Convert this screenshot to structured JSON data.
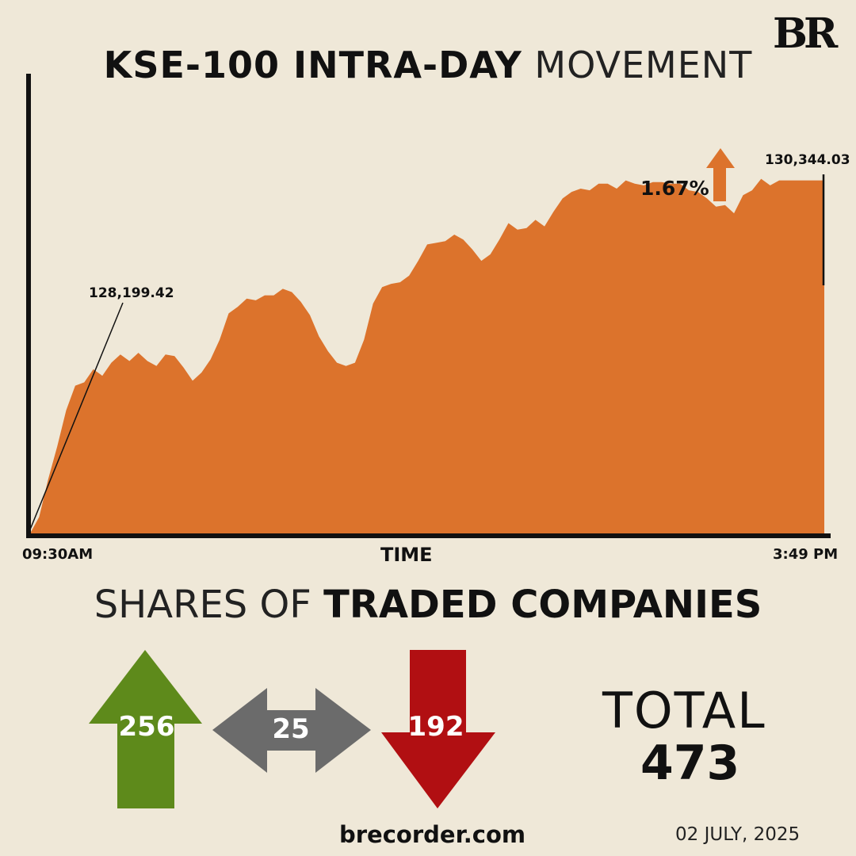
{
  "brand": {
    "logo": "BR",
    "website": "brecorder.com"
  },
  "chart_data": {
    "type": "area",
    "title_bold": "KSE-100 INTRA-DAY",
    "title_light": "MOVEMENT",
    "xlabel": "TIME",
    "x_ticks": [
      "09:30AM",
      "3:49 PM"
    ],
    "ylim": [
      127900,
      130700
    ],
    "start_value": "128,199.42",
    "end_value": "130,344.03",
    "change_pct": "1.67%",
    "color": "#dc732c",
    "series": [
      {
        "values": [
          127750,
          128000,
          128230,
          128430,
          128650,
          128800,
          128820,
          128900,
          128860,
          128940,
          128990,
          128950,
          129000,
          128950,
          128920,
          128990,
          128980,
          128910,
          128830,
          128880,
          128960,
          129080,
          129240,
          129280,
          129330,
          129320,
          129350,
          129350,
          129390,
          129370,
          129310,
          129230,
          129100,
          129010,
          128940,
          128920,
          128940,
          129080,
          129300,
          129400,
          129420,
          129430,
          129470,
          129560,
          129660,
          129670,
          129680,
          129720,
          129690,
          129630,
          129560,
          129600,
          129690,
          129790,
          129750,
          129760,
          129810,
          129770,
          129860,
          129940,
          129980,
          130000,
          129990,
          130030,
          130030,
          130000,
          130050,
          130030,
          130020,
          130040,
          130040,
          130030,
          130030,
          129990,
          129980,
          129940,
          129890,
          129900,
          129850,
          129960,
          129990,
          130060,
          130020,
          130050,
          130050,
          130050,
          130050,
          130050,
          130050
        ]
      }
    ]
  },
  "companies": {
    "title_light": "SHARES OF",
    "title_bold": "TRADED COMPANIES",
    "advanced": "256",
    "unchanged": "25",
    "declined": "192",
    "total_label": "TOTAL",
    "total": "473",
    "colors": {
      "advanced": "#5e8a1b",
      "unchanged": "#6b6b6b",
      "declined": "#b10f12"
    }
  },
  "date": "02 JULY, 2025"
}
